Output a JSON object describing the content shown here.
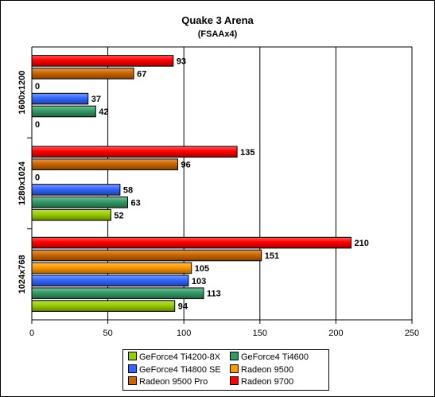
{
  "chart_data": {
    "type": "bar",
    "orientation": "horizontal",
    "title": "Quake 3 Arena",
    "subtitle": "(FSAAx4)",
    "xlim": [
      0,
      250
    ],
    "xticks": [
      0,
      50,
      100,
      150,
      200,
      250
    ],
    "grid": "vertical major gridlines",
    "legend_position": "bottom",
    "categories": [
      "1600x1200",
      "1280x1024",
      "1024x768"
    ],
    "series": [
      {
        "name": "GeForce4 Ti4200-8X",
        "color": "#99cc00",
        "values": [
          0,
          52,
          94
        ]
      },
      {
        "name": "GeForce4 Ti4600",
        "color": "#339966",
        "values": [
          42,
          63,
          113
        ]
      },
      {
        "name": "GeForce4 Ti4800 SE",
        "color": "#3366ff",
        "values": [
          37,
          58,
          103
        ]
      },
      {
        "name": "Radeon 9500",
        "color": "#ff9900",
        "values": [
          0,
          0,
          105
        ]
      },
      {
        "name": "Radeon 9500 Pro",
        "color": "#cc6600",
        "values": [
          67,
          96,
          151
        ]
      },
      {
        "name": "Radeon 9700",
        "color": "#ff0000",
        "values": [
          93,
          135,
          210
        ]
      }
    ]
  }
}
